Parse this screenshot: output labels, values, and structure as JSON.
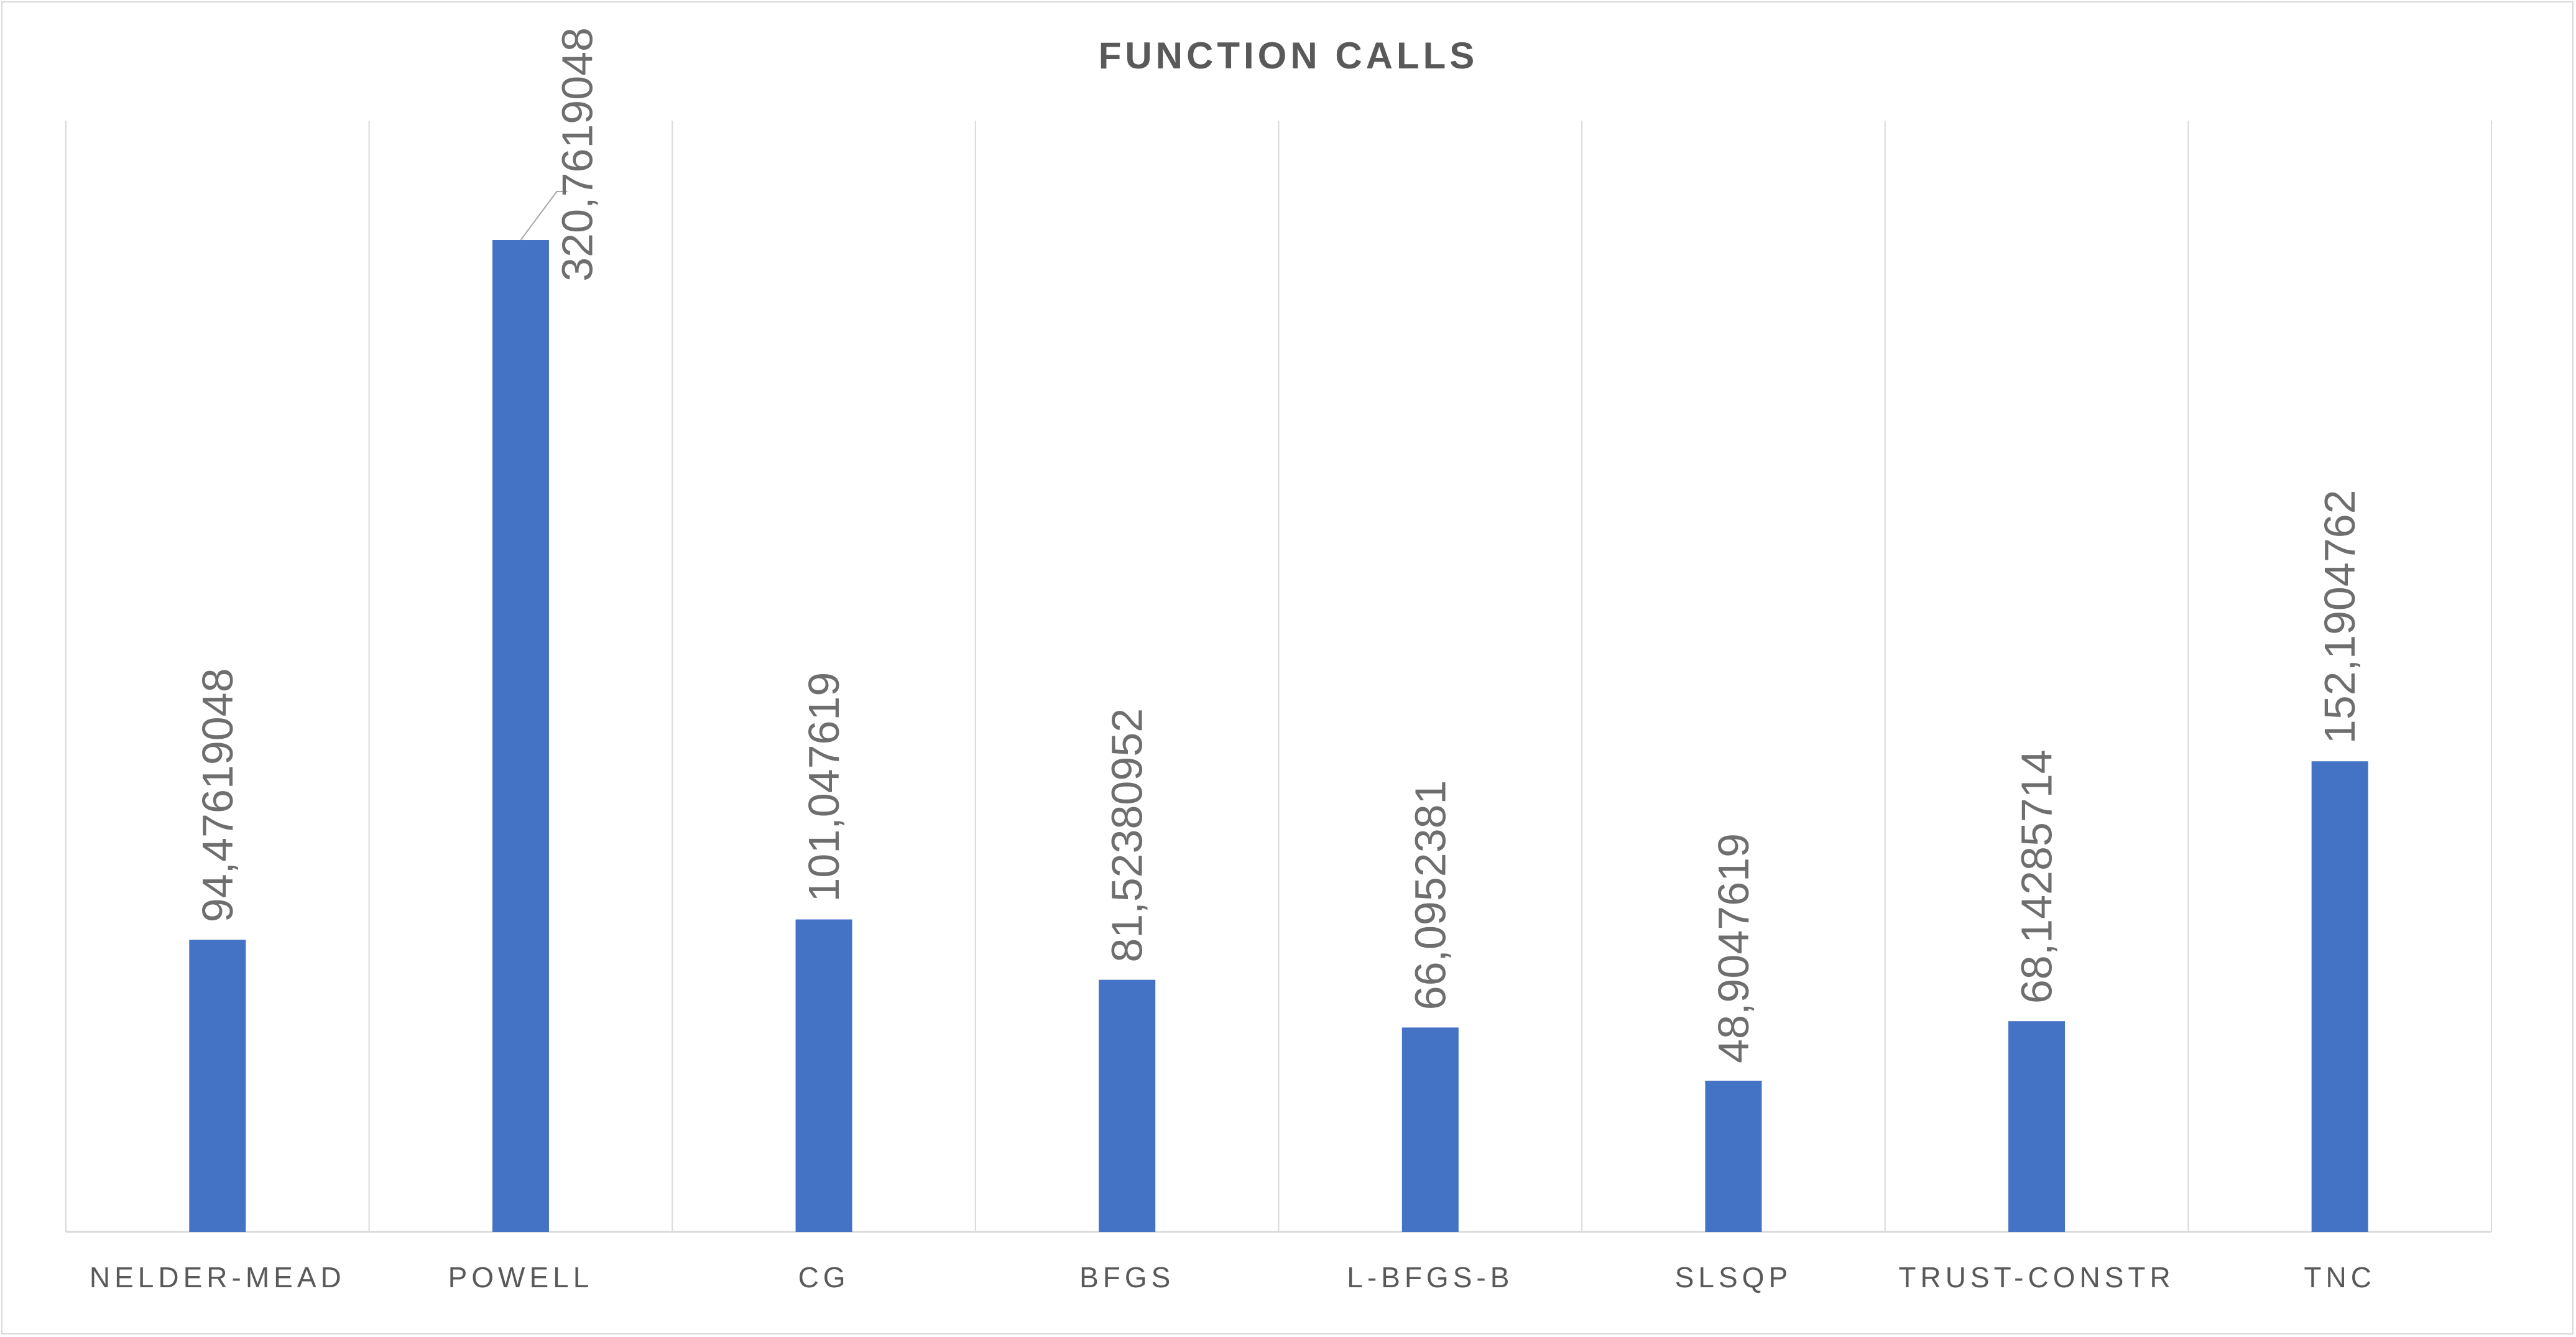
{
  "chart_data": {
    "type": "bar",
    "title": "FUNCTION CALLS",
    "xlabel": "",
    "ylabel": "",
    "categories": [
      "NELDER-MEAD",
      "POWELL",
      "CG",
      "BFGS",
      "L-BFGS-B",
      "SLSQP",
      "TRUST-CONSTR",
      "TNC"
    ],
    "values": [
      94.47619048,
      320.7619048,
      101.047619,
      81.52380952,
      66.0952381,
      48.9047619,
      68.14285714,
      152.1904762
    ],
    "value_labels": [
      "94,47619048",
      "320,7619048",
      "101,047619",
      "81,52380952",
      "66,0952381",
      "48,9047619",
      "68,14285714",
      "152,1904762"
    ],
    "ylim": [
      0,
      350
    ],
    "grid": "vertical",
    "legend": "none",
    "colors": {
      "bar": "#4472c4",
      "grid": "#d9d9d9",
      "axis": "#d9d9d9",
      "text": "#595959"
    }
  }
}
